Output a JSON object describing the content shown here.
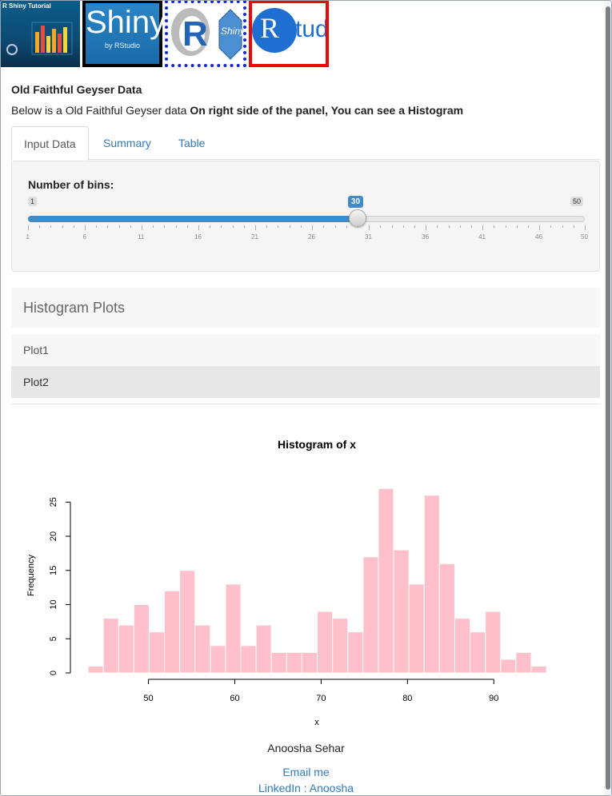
{
  "banner": {
    "tutorial_title": "R Shiny Tutorial",
    "shiny_big": "Shiny",
    "shiny_small": "by RStudio",
    "r_letter": "R",
    "r_shiny": "Shiny",
    "rstudio_r": "R",
    "rstudio_text": "Studio"
  },
  "page_title": "Old Faithful Geyser Data",
  "description": {
    "lead": "Below is a Old Faithful Geyser data ",
    "bold": "On right side of the panel, You can see a Histogram"
  },
  "tabs": [
    {
      "label": "Input Data",
      "active": true
    },
    {
      "label": "Summary",
      "active": false
    },
    {
      "label": "Table",
      "active": false
    }
  ],
  "slider": {
    "label": "Number of bins:",
    "min": 1,
    "max": 50,
    "value": 30,
    "min_label": "1",
    "max_label": "50",
    "value_label": "30",
    "tick_labels": [
      "1",
      "6",
      "11",
      "16",
      "21",
      "26",
      "31",
      "36",
      "41",
      "46",
      "50"
    ]
  },
  "histogram_list": {
    "header": "Histogram Plots",
    "items": [
      {
        "label": "Plot1",
        "selected": false
      },
      {
        "label": "Plot2",
        "selected": true
      }
    ]
  },
  "chart_data": {
    "type": "bar",
    "title": "Histogram of x",
    "xlabel": "x",
    "ylabel": "Frequency",
    "xlim": [
      43,
      96
    ],
    "ylim": [
      0,
      27
    ],
    "bin_width": 1.77,
    "bin_start": 43.0,
    "values": [
      1,
      8,
      7,
      10,
      6,
      12,
      15,
      7,
      4,
      13,
      4,
      7,
      3,
      3,
      3,
      9,
      8,
      6,
      17,
      27,
      18,
      13,
      26,
      16,
      8,
      6,
      9,
      2,
      3,
      1
    ],
    "x_ticks": [
      50,
      60,
      70,
      80,
      90
    ],
    "y_ticks": [
      0,
      5,
      10,
      15,
      20,
      25
    ],
    "bar_color": "#FFC0CB",
    "grid": false
  },
  "footer": {
    "author": "Anoosha Sehar",
    "email_link": "Email me",
    "linkedin_link": "LinkedIn : Anoosha"
  },
  "colors": {
    "link": "#337ab7",
    "slider_accent": "#428bca",
    "frame_red": "#e50b0b",
    "frame_blue": "#1525d6"
  }
}
